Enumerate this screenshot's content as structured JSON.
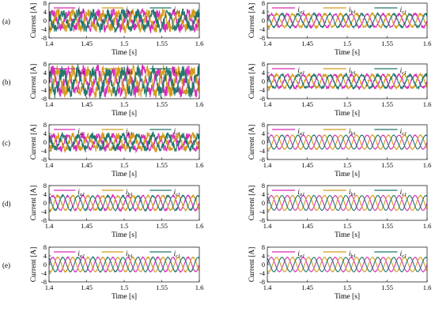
{
  "chart_data": {
    "type": "line",
    "colors": {
      "ia1": "#d62bb8",
      "ib1": "#d39a1c",
      "ic1": "#22776e"
    },
    "legend": [
      {
        "main": "i",
        "sub": "a1"
      },
      {
        "main": "i",
        "sub": "b1"
      },
      {
        "main": "i",
        "sub": "c1"
      }
    ],
    "xlabel": "Time [s]",
    "ylabel": "Current [A]",
    "xlim": [
      1.4,
      1.6
    ],
    "ylim": [
      -8,
      8
    ],
    "x_ticks": [
      "1.4",
      "1.45",
      "1.5",
      "1.55",
      "1.6"
    ],
    "y_ticks": [
      "8",
      "4",
      "0",
      "-4",
      "-8"
    ],
    "rows": [
      {
        "label": "(a)",
        "left": {
          "amplitude": 3.5,
          "cycles": 10,
          "noise": 2.2,
          "offset": 0
        },
        "right": {
          "amplitude": 3.0,
          "cycles": 10,
          "noise": 0.45,
          "offset": 0
        }
      },
      {
        "label": "(b)",
        "left": {
          "amplitude": 5.0,
          "cycles": 10,
          "noise": 2.8,
          "offset": 0
        },
        "right": {
          "amplitude": 3.0,
          "cycles": 10,
          "noise": 0.6,
          "offset": 0
        }
      },
      {
        "label": "(c)",
        "left": {
          "amplitude": 3.0,
          "cycles": 10,
          "noise": 1.6,
          "offset": 0
        },
        "right": {
          "amplitude": 3.2,
          "cycles": 10,
          "noise": 0.15,
          "offset": 0
        }
      },
      {
        "label": "(d)",
        "left": {
          "amplitude": 3.3,
          "cycles": 10,
          "noise": 0.35,
          "offset": 0
        },
        "right": {
          "amplitude": 3.4,
          "cycles": 10,
          "noise": 0.1,
          "offset": 0
        }
      },
      {
        "label": "(e)",
        "left": {
          "amplitude": 3.3,
          "cycles": 10,
          "noise": 0.2,
          "offset": 0
        },
        "right": {
          "amplitude": 3.3,
          "cycles": 10,
          "noise": 0.1,
          "offset": 0
        }
      }
    ]
  }
}
